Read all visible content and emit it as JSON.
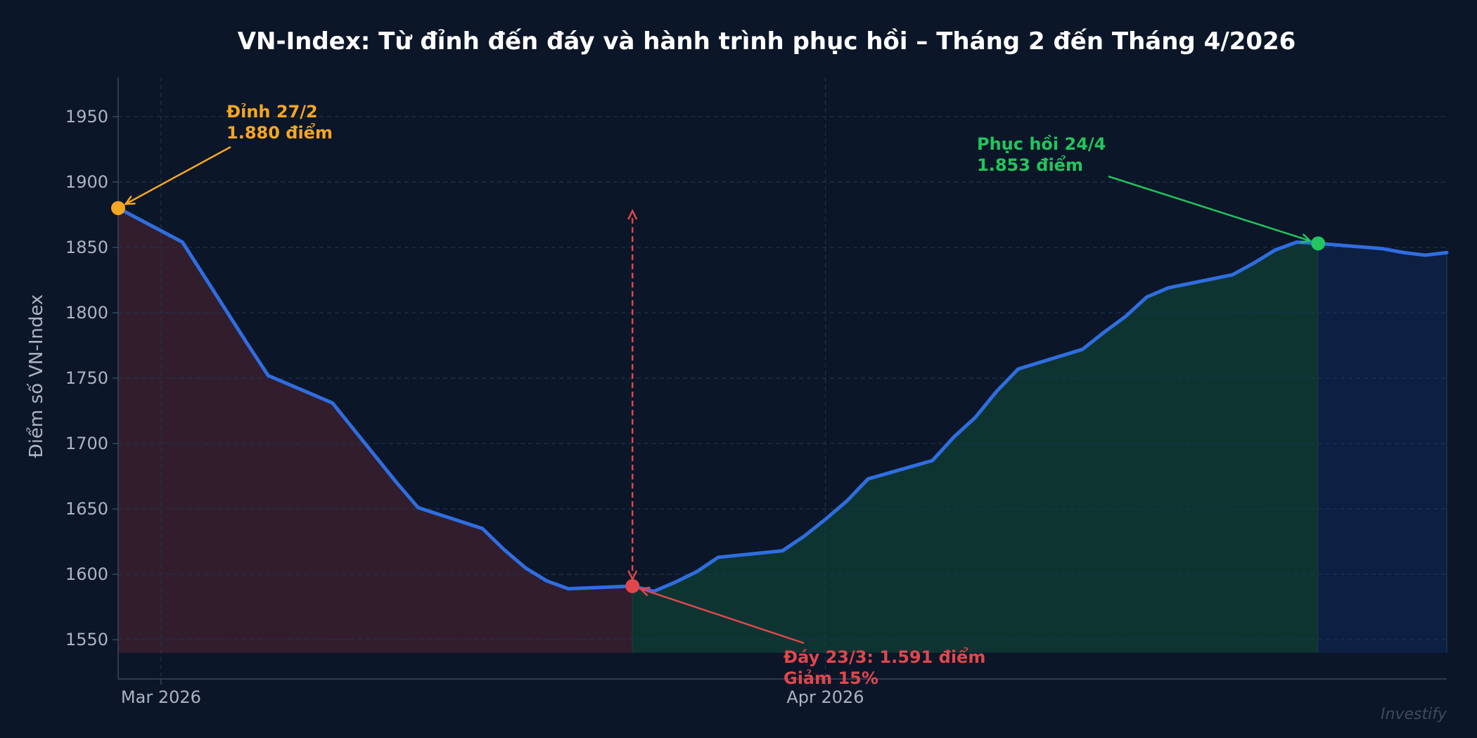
{
  "chart_data": {
    "type": "line",
    "title": "VN-Index: Từ đỉnh đến đáy và hành trình phục hồi – Tháng 2 đến Tháng 4/2026",
    "xlabel": "",
    "ylabel": "Điểm số VN-Index",
    "ylim": [
      1520,
      1980
    ],
    "xlim": [
      "2026-02-27",
      "2026-04-30"
    ],
    "yticks": [
      1550,
      1600,
      1650,
      1700,
      1750,
      1800,
      1850,
      1900,
      1950
    ],
    "xticks": [
      {
        "date": "2026-03-01",
        "label": "Mar 2026"
      },
      {
        "date": "2026-04-01",
        "label": "Apr 2026"
      }
    ],
    "grid": true,
    "series": [
      {
        "color": "#2f6ee0",
        "points": [
          [
            "2026-02-27",
            1880
          ],
          [
            "2026-03-02",
            1854
          ],
          [
            "2026-03-05",
            1777
          ],
          [
            "2026-03-06",
            1752
          ],
          [
            "2026-03-09",
            1731
          ],
          [
            "2026-03-12",
            1670
          ],
          [
            "2026-03-13",
            1651
          ],
          [
            "2026-03-16",
            1635
          ],
          [
            "2026-03-17",
            1619
          ],
          [
            "2026-03-18",
            1605
          ],
          [
            "2026-03-19",
            1595
          ],
          [
            "2026-03-20",
            1589
          ],
          [
            "2026-03-23",
            1591
          ],
          [
            "2026-03-24",
            1587
          ],
          [
            "2026-03-25",
            1594
          ],
          [
            "2026-03-26",
            1602
          ],
          [
            "2026-03-27",
            1613
          ],
          [
            "2026-03-30",
            1618
          ],
          [
            "2026-03-31",
            1629
          ],
          [
            "2026-04-01",
            1642
          ],
          [
            "2026-04-02",
            1656
          ],
          [
            "2026-04-03",
            1673
          ],
          [
            "2026-04-06",
            1687
          ],
          [
            "2026-04-07",
            1705
          ],
          [
            "2026-04-08",
            1720
          ],
          [
            "2026-04-09",
            1740
          ],
          [
            "2026-04-10",
            1757
          ],
          [
            "2026-04-13",
            1772
          ],
          [
            "2026-04-14",
            1785
          ],
          [
            "2026-04-15",
            1797
          ],
          [
            "2026-04-16",
            1812
          ],
          [
            "2026-04-17",
            1819
          ],
          [
            "2026-04-20",
            1829
          ],
          [
            "2026-04-21",
            1838
          ],
          [
            "2026-04-22",
            1848
          ],
          [
            "2026-04-23",
            1854
          ],
          [
            "2026-04-24",
            1853
          ],
          [
            "2026-04-27",
            1849
          ],
          [
            "2026-04-28",
            1846
          ],
          [
            "2026-04-29",
            1844
          ],
          [
            "2026-04-30",
            1846
          ]
        ]
      }
    ],
    "shaded_regions": [
      {
        "from": "2026-02-27",
        "to": "2026-03-23",
        "color": "#3a1f2e"
      },
      {
        "from": "2026-03-23",
        "to": "2026-04-24",
        "color": "#0f3a34"
      },
      {
        "from": "2026-04-24",
        "to": "2026-04-30",
        "color": "#0e2248"
      }
    ],
    "annotations": [
      {
        "name": "peak",
        "date": "2026-02-27",
        "value": 1880,
        "color": "#f5a623",
        "lines": [
          "Đỉnh 27/2",
          "1.880 điểm"
        ]
      },
      {
        "name": "trough",
        "date": "2026-03-23",
        "value": 1591,
        "color": "#e0474c",
        "lines": [
          "Đáy 23/3: 1.591 điểm",
          "Giảm 15%"
        ]
      },
      {
        "name": "recovery",
        "date": "2026-04-24",
        "value": 1853,
        "color": "#22c55e",
        "lines": [
          "Phục hồi 24/4",
          "1.853 điểm"
        ]
      }
    ],
    "drop_marker": {
      "date": "2026-03-23",
      "from": 1591,
      "to": 1880,
      "color": "#e0474c"
    }
  },
  "watermark": "Investify"
}
